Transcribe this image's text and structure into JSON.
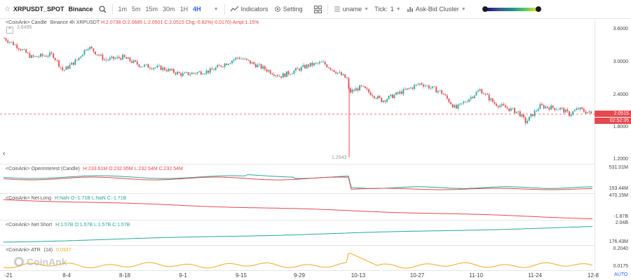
{
  "toolbar": {
    "star": "☆",
    "symbol": "XRPUSDT_SPOT",
    "exchange": "Binance",
    "timeframes": [
      "1m",
      "5m",
      "15m",
      "30m",
      "1H",
      "4H"
    ],
    "active_timeframe": "4H",
    "indicators_label": "Indicators",
    "setting_label": "Setting",
    "uname_label": "uname",
    "tick_label": "Tick:",
    "tick_value": "1",
    "cluster_label": "Ask-Bid Cluster"
  },
  "main_pane": {
    "legend_prefix": "<CoinAnk> Candle",
    "legend_symbol": "Binance 4h XRPUSDT",
    "h": "H:2.0738",
    "o": "O:2.0685",
    "l": "L:2.0501",
    "c": "C:2.0515",
    "chg": "Chg:-0.82%(-0.0170)",
    "ampl": "Ampl:1.15%",
    "high_marker": "3.6495",
    "low_marker": "1.2543",
    "axis_labels": [
      "3.6000",
      "3.0000",
      "2.4000",
      "1.8000",
      "1.2000"
    ],
    "current_price": "2.0515",
    "countdown": "02:52:35"
  },
  "oi_pane": {
    "legend": "<CoinAnk> OpenInterest (Candle)",
    "h": "H:233.61M",
    "o": "O:232.95M",
    "l": "L:232.54M",
    "c": "C:232.54M",
    "axis_top": "531.01M",
    "axis_bottom": "153.44M"
  },
  "netlong_pane": {
    "legend": "<CoinAnk> Net Long",
    "h": "H:NaN",
    "o": "O:-1.71B",
    "l": "L:NaN",
    "c": "C:-1.71B",
    "axis_top": "470.15M",
    "axis_bottom": "-1.87B"
  },
  "netshort_pane": {
    "legend": "<CoinAnk> Net Short",
    "h": "H:1.57B",
    "o": "O:1.57B",
    "l": "L:1.57B",
    "c": "C:1.57B",
    "axis_top": "2.04B",
    "axis_bottom": "176.43M"
  },
  "atr_pane": {
    "legend": "<CoinAnk> ATR",
    "period": "(14)",
    "value": "0.0337",
    "axis_top": "0.2040",
    "axis_bottom": "0.0175"
  },
  "x_axis": [
    "-21",
    "8-4",
    "8-18",
    "9-1",
    "9-15",
    "9-29",
    "10-13",
    "10-27",
    "11-10",
    "11-24",
    "12-8"
  ],
  "footer": {
    "watermark": "CoinAnk",
    "auto_label": "AUTO"
  },
  "colors": {
    "up": "#26a69a",
    "down": "#e5484d",
    "oi_line": "#26a69a",
    "netlong_line": "#e5484d",
    "netshort_line": "#26a69a",
    "atr_line": "#f5a623",
    "accent": "#2962ff"
  }
}
